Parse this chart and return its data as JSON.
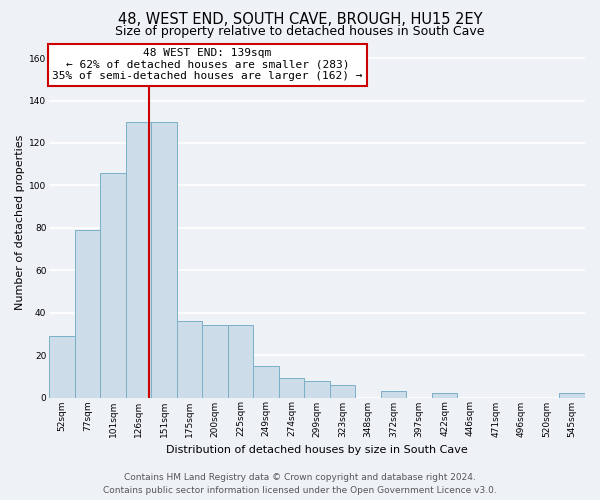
{
  "title": "48, WEST END, SOUTH CAVE, BROUGH, HU15 2EY",
  "subtitle": "Size of property relative to detached houses in South Cave",
  "xlabel": "Distribution of detached houses by size in South Cave",
  "ylabel": "Number of detached properties",
  "bin_labels": [
    "52sqm",
    "77sqm",
    "101sqm",
    "126sqm",
    "151sqm",
    "175sqm",
    "200sqm",
    "225sqm",
    "249sqm",
    "274sqm",
    "299sqm",
    "323sqm",
    "348sqm",
    "372sqm",
    "397sqm",
    "422sqm",
    "446sqm",
    "471sqm",
    "496sqm",
    "520sqm",
    "545sqm"
  ],
  "bar_heights": [
    29,
    79,
    106,
    130,
    130,
    36,
    34,
    34,
    15,
    9,
    8,
    6,
    0,
    3,
    0,
    2,
    0,
    0,
    0,
    0,
    2
  ],
  "bar_color": "#ccdce8",
  "bar_edge_color": "#7aafc8",
  "vline_x_index": 3,
  "vline_color": "#cc0000",
  "annotation_text_line1": "48 WEST END: 139sqm",
  "annotation_text_line2": "← 62% of detached houses are smaller (283)",
  "annotation_text_line3": "35% of semi-detached houses are larger (162) →",
  "annotation_box_color": "#ffffff",
  "annotation_border_color": "#cc0000",
  "ylim": [
    0,
    165
  ],
  "yticks": [
    0,
    20,
    40,
    60,
    80,
    100,
    120,
    140,
    160
  ],
  "footer_line1": "Contains HM Land Registry data © Crown copyright and database right 2024.",
  "footer_line2": "Contains public sector information licensed under the Open Government Licence v3.0.",
  "background_color": "#eef2f6",
  "grid_color": "#ffffff",
  "title_fontsize": 10.5,
  "subtitle_fontsize": 9,
  "axis_label_fontsize": 8,
  "tick_fontsize": 6.5,
  "annotation_fontsize": 8,
  "footer_fontsize": 6.5
}
